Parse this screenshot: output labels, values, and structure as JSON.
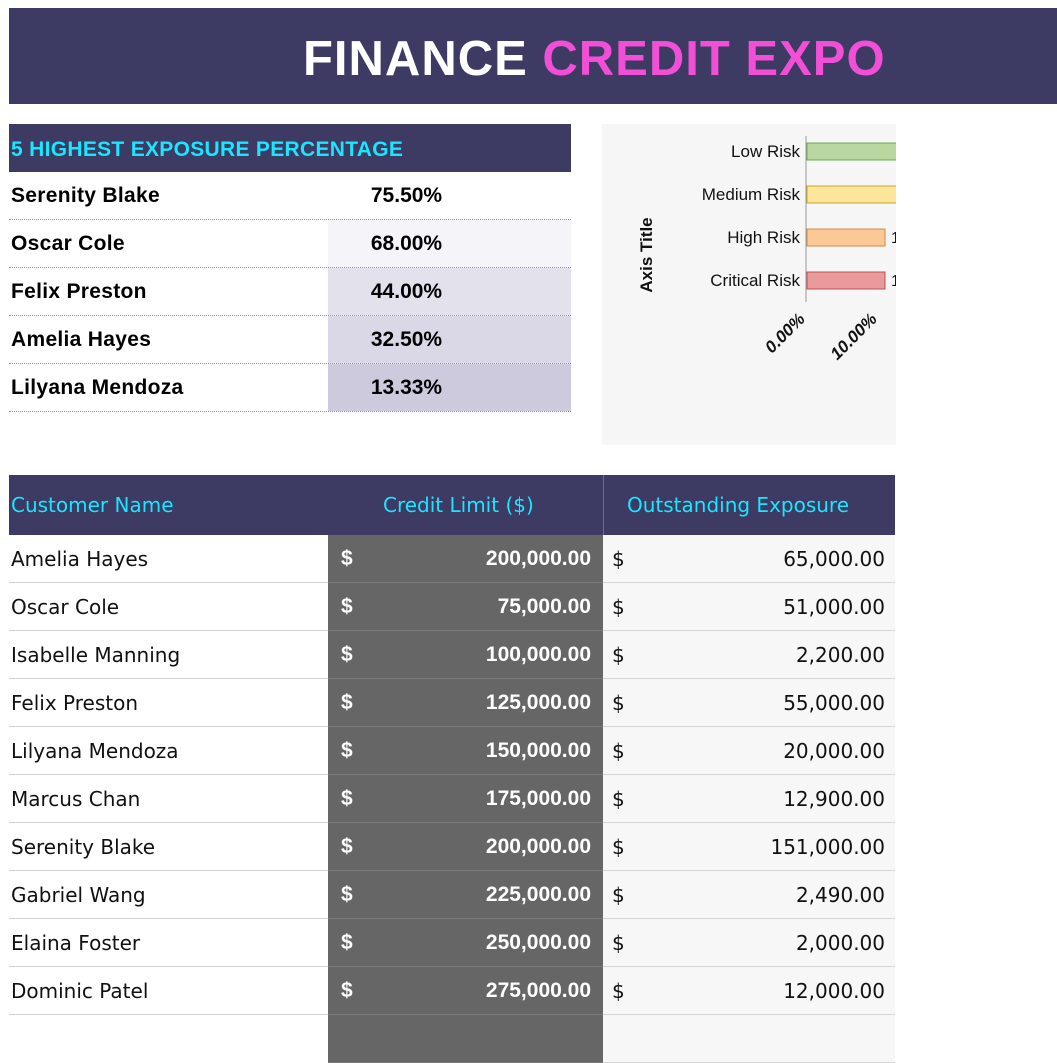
{
  "title": {
    "part1": "FINANCE ",
    "part2": "CREDIT EXPO"
  },
  "top5": {
    "header": "5 HIGHEST EXPOSURE PERCENTAGE",
    "rows": [
      {
        "name": "Serenity Blake",
        "value": "75.50%",
        "shade": "#ffffff"
      },
      {
        "name": "Oscar Cole",
        "value": "68.00%",
        "shade": "#f4f4f9"
      },
      {
        "name": "Felix Preston",
        "value": "44.00%",
        "shade": "#e3e1ec"
      },
      {
        "name": "Amelia Hayes",
        "value": "32.50%",
        "shade": "#dad8e6"
      },
      {
        "name": "Lilyana Mendoza",
        "value": "13.33%",
        "shade": "#cdcadd"
      }
    ]
  },
  "chart_data": {
    "type": "bar",
    "orientation": "horizontal",
    "categories": [
      "Low Risk",
      "Medium Risk",
      "High Risk",
      "Critical Risk"
    ],
    "values": [
      null,
      null,
      null,
      null
    ],
    "bar_colors": [
      "#b8d8a0",
      "#fde59a",
      "#fcc896",
      "#e99a9a"
    ],
    "bar_borders": [
      "#6aa84f",
      "#c9a227",
      "#cc8a4a",
      "#c05050"
    ],
    "ylabel": "Axis Title",
    "xtick_labels": [
      "0.00%",
      "10.00%"
    ],
    "visible_value_label_fragments": [
      "1",
      "1"
    ],
    "grid": false
  },
  "main_table": {
    "headers": {
      "name": "Customer Name",
      "limit": "Credit Limit ($)",
      "exposure": "Outstanding Exposure"
    },
    "currency_symbol": "$",
    "rows": [
      {
        "name": "Amelia Hayes",
        "limit": "200,000.00",
        "exposure": "65,000.00"
      },
      {
        "name": "Oscar Cole",
        "limit": "75,000.00",
        "exposure": "51,000.00"
      },
      {
        "name": "Isabelle Manning",
        "limit": "100,000.00",
        "exposure": "2,200.00"
      },
      {
        "name": "Felix Preston",
        "limit": "125,000.00",
        "exposure": "55,000.00"
      },
      {
        "name": "Lilyana Mendoza",
        "limit": "150,000.00",
        "exposure": "20,000.00"
      },
      {
        "name": "Marcus Chan",
        "limit": "175,000.00",
        "exposure": "12,900.00"
      },
      {
        "name": "Serenity Blake",
        "limit": "200,000.00",
        "exposure": "151,000.00"
      },
      {
        "name": "Gabriel Wang",
        "limit": "225,000.00",
        "exposure": "2,490.00"
      },
      {
        "name": "Elaina Foster",
        "limit": "250,000.00",
        "exposure": "2,000.00"
      },
      {
        "name": "Dominic Patel",
        "limit": "275,000.00",
        "exposure": "12,000.00"
      }
    ]
  }
}
